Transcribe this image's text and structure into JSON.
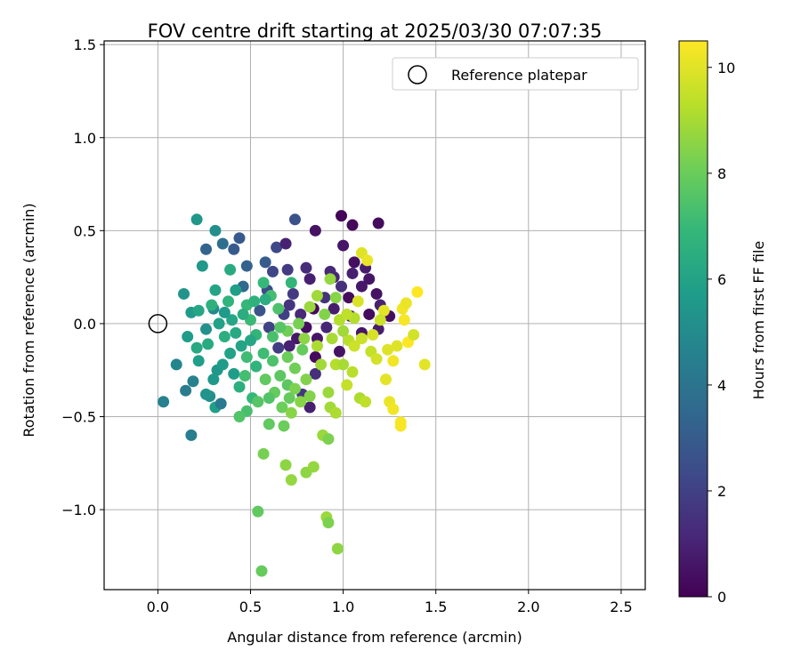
{
  "chart_data": {
    "type": "scatter",
    "title": "FOV centre drift starting at 2025/03/30 07:07:35",
    "xlabel": "Angular distance from reference (arcmin)",
    "ylabel": "Rotation from reference (arcmin)",
    "xlim": [
      -0.29,
      2.63
    ],
    "ylim": [
      -1.43,
      1.52
    ],
    "xticks": [
      0.0,
      0.5,
      1.0,
      1.5,
      2.0,
      2.5
    ],
    "xtick_labels": [
      "0.0",
      "0.5",
      "1.0",
      "1.5",
      "2.0",
      "2.5"
    ],
    "yticks": [
      -1.0,
      -0.5,
      0.0,
      0.5,
      1.0,
      1.5
    ],
    "ytick_labels": [
      "−1.0",
      "−0.5",
      "0.0",
      "0.5",
      "1.0",
      "1.5"
    ],
    "grid": true,
    "legend": {
      "location": "top-right",
      "entries": [
        {
          "label": "Reference platepar",
          "marker": "open-circle"
        }
      ]
    },
    "reference_point": {
      "x": 0.0,
      "y": 0.0
    },
    "colorbar": {
      "label": "Hours from first FF file",
      "colormap": "viridis",
      "range": [
        0,
        10.5
      ],
      "ticks": [
        0,
        2,
        4,
        6,
        8,
        10
      ],
      "tick_labels": [
        "0",
        "2",
        "4",
        "6",
        "8",
        "10"
      ]
    },
    "points": [
      [
        0.99,
        0.58,
        0.1
      ],
      [
        1.05,
        0.53,
        0.2
      ],
      [
        1.19,
        0.54,
        0.3
      ],
      [
        0.85,
        0.5,
        0.5
      ],
      [
        1.0,
        0.42,
        0.6
      ],
      [
        1.06,
        0.33,
        0.4
      ],
      [
        1.12,
        0.3,
        0.8
      ],
      [
        1.05,
        0.27,
        0.9
      ],
      [
        0.95,
        0.25,
        1.1
      ],
      [
        0.93,
        0.28,
        1.2
      ],
      [
        0.8,
        0.3,
        1.3
      ],
      [
        0.82,
        0.24,
        0.9
      ],
      [
        1.1,
        0.2,
        0.7
      ],
      [
        1.18,
        0.16,
        0.5
      ],
      [
        1.2,
        0.1,
        1.0
      ],
      [
        1.14,
        0.05,
        0.3
      ],
      [
        1.1,
        -0.05,
        0.6
      ],
      [
        1.19,
        -0.03,
        0.8
      ],
      [
        0.99,
        0.2,
        1.4
      ],
      [
        0.9,
        0.14,
        1.5
      ],
      [
        0.84,
        0.08,
        0.2
      ],
      [
        0.8,
        -0.02,
        0.4
      ],
      [
        0.75,
        -0.08,
        0.7
      ],
      [
        0.71,
        0.1,
        1.6
      ],
      [
        0.77,
        0.05,
        1.2
      ],
      [
        0.86,
        -0.08,
        0.6
      ],
      [
        0.73,
        0.16,
        1.8
      ],
      [
        0.68,
        0.05,
        2.0
      ],
      [
        0.71,
        -0.12,
        1.0
      ],
      [
        0.85,
        -0.18,
        0.3
      ],
      [
        0.98,
        -0.15,
        0.5
      ],
      [
        0.82,
        -0.45,
        0.9
      ],
      [
        0.78,
        -0.38,
        1.7
      ],
      [
        0.85,
        -0.27,
        1.4
      ],
      [
        0.91,
        -0.02,
        1.1
      ],
      [
        0.95,
        0.08,
        0.8
      ],
      [
        1.03,
        0.14,
        0.3
      ],
      [
        1.14,
        0.24,
        0.6
      ],
      [
        1.04,
        0.04,
        0.9
      ],
      [
        1.25,
        0.04,
        0.4
      ],
      [
        0.64,
        0.41,
        2.3
      ],
      [
        0.69,
        0.43,
        1.0
      ],
      [
        0.74,
        0.56,
        2.6
      ],
      [
        0.7,
        0.29,
        1.8
      ],
      [
        0.62,
        0.28,
        2.2
      ],
      [
        0.59,
        0.18,
        2.4
      ],
      [
        0.55,
        0.07,
        2.7
      ],
      [
        0.6,
        -0.02,
        2.1
      ],
      [
        0.65,
        -0.13,
        1.9
      ],
      [
        0.58,
        0.33,
        3.0
      ],
      [
        0.48,
        0.31,
        3.3
      ],
      [
        0.46,
        0.2,
        3.6
      ],
      [
        0.41,
        0.4,
        3.0
      ],
      [
        0.35,
        0.43,
        3.8
      ],
      [
        0.44,
        0.46,
        2.9
      ],
      [
        0.26,
        0.4,
        3.4
      ],
      [
        0.21,
        0.56,
        5.5
      ],
      [
        0.31,
        0.5,
        5.2
      ],
      [
        0.24,
        0.31,
        5.6
      ],
      [
        0.39,
        0.29,
        6.4
      ],
      [
        0.31,
        0.18,
        6.1
      ],
      [
        0.14,
        0.16,
        5.4
      ],
      [
        0.18,
        0.06,
        5.7
      ],
      [
        0.3,
        0.08,
        5.0
      ],
      [
        0.26,
        -0.03,
        5.3
      ],
      [
        0.16,
        -0.07,
        5.8
      ],
      [
        0.21,
        -0.13,
        6.3
      ],
      [
        0.1,
        -0.22,
        4.8
      ],
      [
        0.19,
        -0.31,
        4.6
      ],
      [
        0.15,
        -0.36,
        4.4
      ],
      [
        0.03,
        -0.42,
        4.6
      ],
      [
        0.18,
        -0.6,
        4.5
      ],
      [
        0.28,
        -0.39,
        5.2
      ],
      [
        0.31,
        -0.45,
        5.9
      ],
      [
        0.34,
        -0.43,
        4.3
      ],
      [
        0.32,
        -0.25,
        5.5
      ],
      [
        0.41,
        -0.27,
        5.8
      ],
      [
        0.45,
        -0.12,
        6.1
      ],
      [
        0.36,
        -0.07,
        6.6
      ],
      [
        0.4,
        0.02,
        6.2
      ],
      [
        0.38,
        0.12,
        6.8
      ],
      [
        0.42,
        0.18,
        5.9
      ],
      [
        0.48,
        0.1,
        7.0
      ],
      [
        0.5,
        0.02,
        7.1
      ],
      [
        0.53,
        -0.06,
        6.9
      ],
      [
        0.48,
        -0.18,
        7.2
      ],
      [
        0.44,
        -0.34,
        6.6
      ],
      [
        0.51,
        -0.4,
        7.0
      ],
      [
        0.48,
        -0.47,
        7.4
      ],
      [
        0.44,
        -0.5,
        7.6
      ],
      [
        0.54,
        -0.42,
        7.7
      ],
      [
        0.58,
        -0.3,
        7.9
      ],
      [
        0.62,
        -0.2,
        7.5
      ],
      [
        0.63,
        -0.37,
        8.0
      ],
      [
        0.67,
        -0.45,
        8.1
      ],
      [
        0.7,
        -0.33,
        7.8
      ],
      [
        0.74,
        -0.24,
        8.2
      ],
      [
        0.78,
        -0.14,
        8.0
      ],
      [
        0.8,
        -0.3,
        8.5
      ],
      [
        0.72,
        -0.48,
        8.6
      ],
      [
        0.68,
        -0.55,
        8.1
      ],
      [
        0.6,
        -0.54,
        7.9
      ],
      [
        0.57,
        -0.7,
        8.3
      ],
      [
        0.69,
        -0.76,
        8.7
      ],
      [
        0.72,
        -0.84,
        8.8
      ],
      [
        0.8,
        -0.8,
        8.7
      ],
      [
        0.84,
        -0.77,
        8.8
      ],
      [
        0.89,
        -0.6,
        8.9
      ],
      [
        0.92,
        -0.62,
        8.4
      ],
      [
        0.54,
        -1.01,
        7.9
      ],
      [
        0.56,
        -1.33,
        8.0
      ],
      [
        0.91,
        -1.04,
        8.9
      ],
      [
        0.92,
        -1.07,
        8.4
      ],
      [
        0.97,
        -1.21,
        8.7
      ],
      [
        0.92,
        -0.37,
        8.9
      ],
      [
        0.93,
        -0.45,
        9.0
      ],
      [
        0.96,
        -0.48,
        9.2
      ],
      [
        0.96,
        -0.22,
        9.3
      ],
      [
        1.0,
        -0.22,
        9.1
      ],
      [
        1.05,
        -0.26,
        9.4
      ],
      [
        1.09,
        -0.4,
        9.2
      ],
      [
        1.12,
        -0.42,
        9.5
      ],
      [
        1.15,
        -0.15,
        9.6
      ],
      [
        1.18,
        -0.19,
        9.8
      ],
      [
        1.1,
        -0.08,
        9.7
      ],
      [
        1.03,
        -0.09,
        9.4
      ],
      [
        1.0,
        -0.04,
        9.0
      ],
      [
        1.06,
        0.03,
        9.3
      ],
      [
        1.08,
        0.12,
        9.9
      ],
      [
        1.1,
        0.38,
        10.0
      ],
      [
        1.13,
        0.34,
        10.2
      ],
      [
        1.22,
        0.07,
        10.1
      ],
      [
        1.24,
        -0.14,
        10.0
      ],
      [
        1.27,
        -0.2,
        10.3
      ],
      [
        1.23,
        -0.3,
        10.1
      ],
      [
        1.25,
        -0.42,
        10.2
      ],
      [
        1.27,
        -0.46,
        10.3
      ],
      [
        1.31,
        -0.53,
        10.4
      ],
      [
        1.31,
        -0.55,
        10.4
      ],
      [
        1.29,
        -0.12,
        10.0
      ],
      [
        1.35,
        -0.1,
        10.5
      ],
      [
        1.33,
        0.02,
        10.4
      ],
      [
        1.32,
        0.08,
        10.3
      ],
      [
        1.34,
        0.11,
        10.2
      ],
      [
        1.4,
        0.17,
        10.5
      ],
      [
        1.38,
        -0.06,
        9.8
      ],
      [
        1.44,
        -0.22,
        10.1
      ],
      [
        0.93,
        0.24,
        8.8
      ],
      [
        0.96,
        0.14,
        8.6
      ],
      [
        0.9,
        0.05,
        8.5
      ],
      [
        0.86,
        0.15,
        9.0
      ],
      [
        0.82,
        0.09,
        8.9
      ],
      [
        0.76,
        0.0,
        8.3
      ],
      [
        0.7,
        -0.04,
        8.2
      ],
      [
        0.65,
        0.08,
        7.5
      ],
      [
        0.61,
        0.15,
        7.3
      ],
      [
        0.57,
        0.22,
        7.0
      ],
      [
        0.52,
        0.12,
        6.7
      ],
      [
        0.46,
        0.05,
        6.5
      ],
      [
        0.42,
        -0.05,
        6.3
      ],
      [
        0.39,
        -0.16,
        6.0
      ],
      [
        0.35,
        -0.22,
        5.8
      ],
      [
        0.3,
        -0.3,
        5.6
      ],
      [
        0.26,
        -0.38,
        5.4
      ],
      [
        0.22,
        -0.2,
        5.9
      ],
      [
        0.27,
        -0.11,
        6.4
      ],
      [
        0.33,
        0.0,
        6.0
      ],
      [
        0.36,
        0.06,
        5.7
      ],
      [
        0.29,
        0.1,
        6.7
      ],
      [
        0.22,
        0.07,
        6.2
      ],
      [
        0.53,
        -0.23,
        6.8
      ],
      [
        0.57,
        -0.16,
        7.2
      ],
      [
        0.62,
        -0.07,
        7.4
      ],
      [
        0.66,
        -0.02,
        7.7
      ],
      [
        0.7,
        -0.18,
        8.1
      ],
      [
        0.74,
        -0.35,
        8.4
      ],
      [
        0.77,
        -0.42,
        8.6
      ],
      [
        0.82,
        -0.39,
        8.5
      ],
      [
        0.86,
        -0.12,
        9.2
      ],
      [
        0.94,
        -0.08,
        9.1
      ],
      [
        1.02,
        -0.33,
        9.6
      ],
      [
        1.06,
        -0.12,
        9.7
      ],
      [
        1.16,
        -0.06,
        9.9
      ],
      [
        1.2,
        0.02,
        9.7
      ],
      [
        0.88,
        -0.22,
        9.0
      ],
      [
        0.72,
        0.22,
        6.9
      ],
      [
        0.58,
        0.13,
        6.5
      ],
      [
        0.5,
        -0.09,
        6.2
      ],
      [
        0.47,
        -0.28,
        7.3
      ],
      [
        0.6,
        -0.4,
        7.6
      ],
      [
        0.66,
        -0.28,
        7.8
      ],
      [
        0.71,
        -0.4,
        8.0
      ],
      [
        0.79,
        -0.08,
        8.7
      ],
      [
        0.98,
        0.02,
        9.3
      ],
      [
        1.02,
        0.05,
        9.5
      ]
    ]
  }
}
